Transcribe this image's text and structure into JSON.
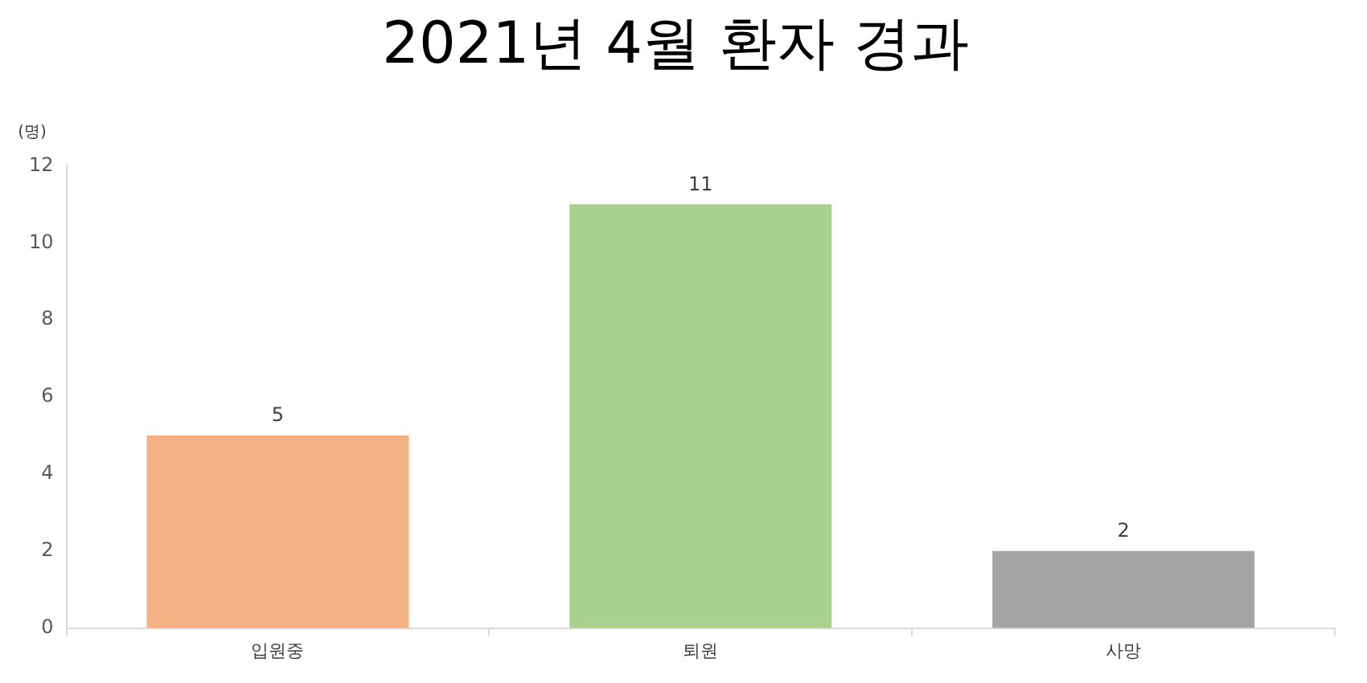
{
  "chart_data": {
    "type": "bar",
    "title": "2021년 4월 환자 경과",
    "ylabel": "(명)",
    "categories": [
      "입원중",
      "퇴원",
      "사망"
    ],
    "values": [
      5,
      11,
      2
    ],
    "colors": [
      "#f4b183",
      "#a9d18e",
      "#a5a5a5"
    ],
    "ylim": [
      0,
      12
    ],
    "yticks": [
      0,
      2,
      4,
      6,
      8,
      10,
      12
    ],
    "grid": false,
    "legend": false,
    "data_labels": true
  }
}
